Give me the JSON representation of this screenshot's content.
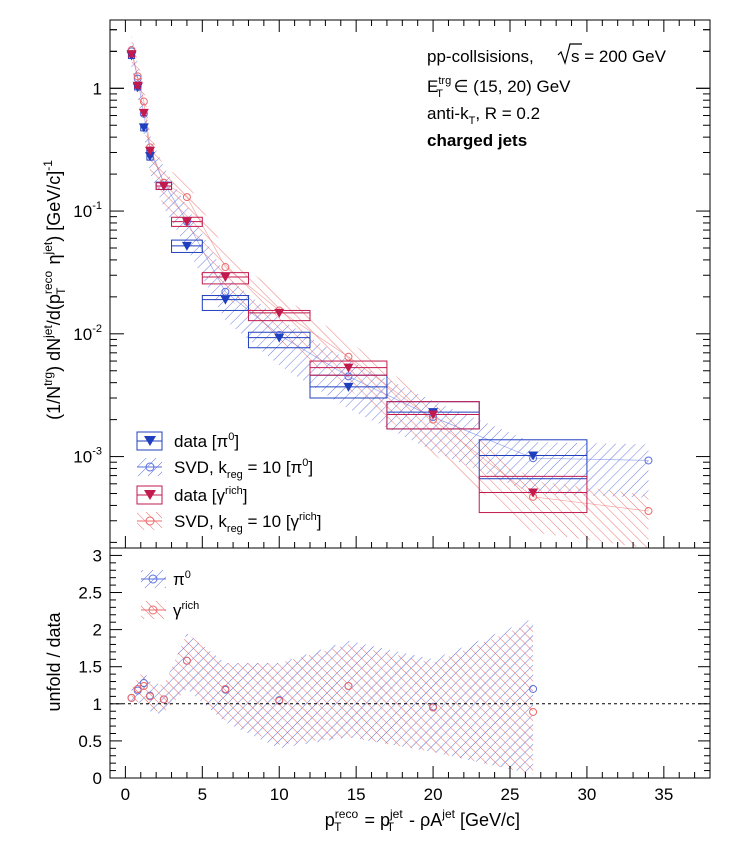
{
  "colors": {
    "pi0": "#1f3fbf",
    "gamma": "#c21a4d",
    "pi0_band": "#5a6fe0",
    "gamma_band": "#ec6a6a"
  },
  "labels": {
    "collision": "pp-collsisions,",
    "sqrt_s": "s",
    "energy": " = 200 GeV",
    "trg_prefix": "E",
    "trg_sub": "T",
    "trg_sup": "trg",
    "trg_range": " ∈ (15, 20) GeV",
    "algo_prefix": "anti-k",
    "algo_sub": "T",
    "algo_suffix": ", R = 0.2",
    "jets": "charged jets",
    "ylabel_top": "(1/N^trg) dN^jet/d(p_T^reco η^jet) [GeV/c]^-1",
    "ylabel_bottom": "unfold / data",
    "xlabel": "p_T^reco = p_T^jet - ρA^jet [GeV/c]"
  },
  "legend_top": [
    {
      "key": "data_pi0",
      "text": "data [π⁰]"
    },
    {
      "key": "svd_pi0",
      "text": "SVD, k_reg = 10 [π⁰]"
    },
    {
      "key": "data_gamma",
      "text": "data [γ^rich]"
    },
    {
      "key": "svd_gamma",
      "text": "SVD, k_reg = 10 [γ^rich]"
    }
  ],
  "legend_bottom": [
    {
      "key": "pi0",
      "text": "π⁰"
    },
    {
      "key": "gamma",
      "text": "γ^rich"
    }
  ],
  "chart_data": [
    {
      "type": "scatter",
      "panel": "top",
      "yscale": "log",
      "xlim": [
        -1,
        38
      ],
      "ylim": [
        0.00018,
        3.6
      ],
      "y_ticks": [
        "1",
        "10^-1",
        "10^-2",
        "10^-3"
      ],
      "series": [
        {
          "name": "data [π⁰]",
          "x": [
            0.4,
            0.8,
            1.2,
            1.6,
            2.5,
            4.0,
            6.5,
            10.0,
            14.5,
            20.0,
            26.5
          ],
          "xerr": [
            0.2,
            0.2,
            0.2,
            0.2,
            0.5,
            1.0,
            1.5,
            2.0,
            2.5,
            3.0,
            3.5
          ],
          "y": [
            1.85,
            1.02,
            0.48,
            0.28,
            0.16,
            0.052,
            0.019,
            0.0093,
            0.0037,
            0.0023,
            0.00102
          ],
          "sys_lo": [
            1.75,
            0.97,
            0.45,
            0.26,
            0.15,
            0.046,
            0.0155,
            0.0077,
            0.003,
            0.00168,
            0.00066
          ],
          "sys_hi": [
            1.95,
            1.07,
            0.51,
            0.3,
            0.172,
            0.058,
            0.0205,
            0.0103,
            0.0046,
            0.0028,
            0.00137
          ]
        },
        {
          "name": "SVD, k_reg = 10 [π⁰]",
          "x": [
            0.4,
            0.8,
            1.2,
            1.6,
            2.5,
            4.0,
            6.5,
            10.0,
            14.5,
            20.0,
            26.5,
            34.0
          ],
          "y": [
            2.0,
            1.2,
            0.62,
            0.31,
            0.17,
            0.082,
            0.022,
            0.0098,
            0.0045,
            0.0021,
            0.00097,
            0.00093
          ]
        },
        {
          "name": "data [γ^rich]",
          "x": [
            0.4,
            0.8,
            1.2,
            1.6,
            2.5,
            4.0,
            6.5,
            10.0,
            14.5,
            20.0,
            26.5
          ],
          "xerr": [
            0.2,
            0.2,
            0.2,
            0.2,
            0.5,
            1.0,
            1.5,
            2.0,
            2.5,
            3.0,
            3.5
          ],
          "y": [
            1.9,
            1.05,
            0.63,
            0.31,
            0.16,
            0.082,
            0.029,
            0.0148,
            0.0053,
            0.0022,
            0.00051
          ],
          "sys_lo": [
            1.8,
            1.0,
            0.6,
            0.29,
            0.15,
            0.075,
            0.0255,
            0.0128,
            0.0046,
            0.00168,
            0.00035
          ],
          "sys_hi": [
            2.0,
            1.1,
            0.66,
            0.33,
            0.17,
            0.089,
            0.0315,
            0.0155,
            0.006,
            0.0028,
            0.00069
          ]
        },
        {
          "name": "SVD, k_reg = 10 [γ^rich]",
          "x": [
            0.4,
            0.8,
            1.2,
            1.6,
            2.5,
            4.0,
            6.5,
            10.0,
            14.5,
            20.0,
            26.5,
            34.0
          ],
          "y": [
            2.05,
            1.25,
            0.78,
            0.33,
            0.17,
            0.13,
            0.035,
            0.0155,
            0.0065,
            0.002,
            0.00047,
            0.00036
          ]
        }
      ]
    },
    {
      "type": "scatter",
      "panel": "bottom",
      "xlim": [
        -1,
        38
      ],
      "ylim": [
        0,
        3.1
      ],
      "x_ticks": [
        0,
        5,
        10,
        15,
        20,
        25,
        30,
        35
      ],
      "y_ticks": [
        0,
        0.5,
        1,
        1.5,
        2,
        2.5,
        3
      ],
      "reference_line": 1,
      "series": [
        {
          "name": "π⁰",
          "x": [
            0.4,
            0.8,
            1.2,
            1.6,
            2.5,
            4.0,
            6.5,
            10.0,
            14.5,
            20.0,
            26.5
          ],
          "y": [
            1.08,
            1.18,
            1.28,
            1.11,
            1.06,
            1.58,
            1.19,
            1.05,
            1.24,
            0.96,
            1.2
          ],
          "band_lo": [
            0.95,
            1.0,
            1.05,
            0.9,
            0.85,
            1.2,
            0.75,
            0.4,
            0.55,
            0.35,
            0.05
          ],
          "band_hi": [
            1.2,
            1.35,
            1.45,
            1.3,
            1.25,
            1.95,
            1.55,
            1.55,
            1.85,
            1.6,
            2.15
          ]
        },
        {
          "name": "γ^rich",
          "x": [
            0.4,
            0.8,
            1.2,
            1.6,
            2.5,
            4.0,
            6.5,
            10.0,
            14.5,
            20.0,
            26.5
          ],
          "y": [
            1.08,
            1.2,
            1.24,
            1.1,
            1.06,
            1.58,
            1.2,
            1.04,
            1.24,
            0.95,
            0.89
          ],
          "band_lo": [
            0.97,
            1.02,
            1.05,
            0.92,
            0.88,
            1.2,
            0.78,
            0.45,
            0.55,
            0.35,
            0.05
          ],
          "band_hi": [
            1.2,
            1.35,
            1.45,
            1.28,
            1.25,
            1.95,
            1.55,
            1.55,
            1.8,
            1.55,
            2.1
          ]
        }
      ]
    }
  ]
}
